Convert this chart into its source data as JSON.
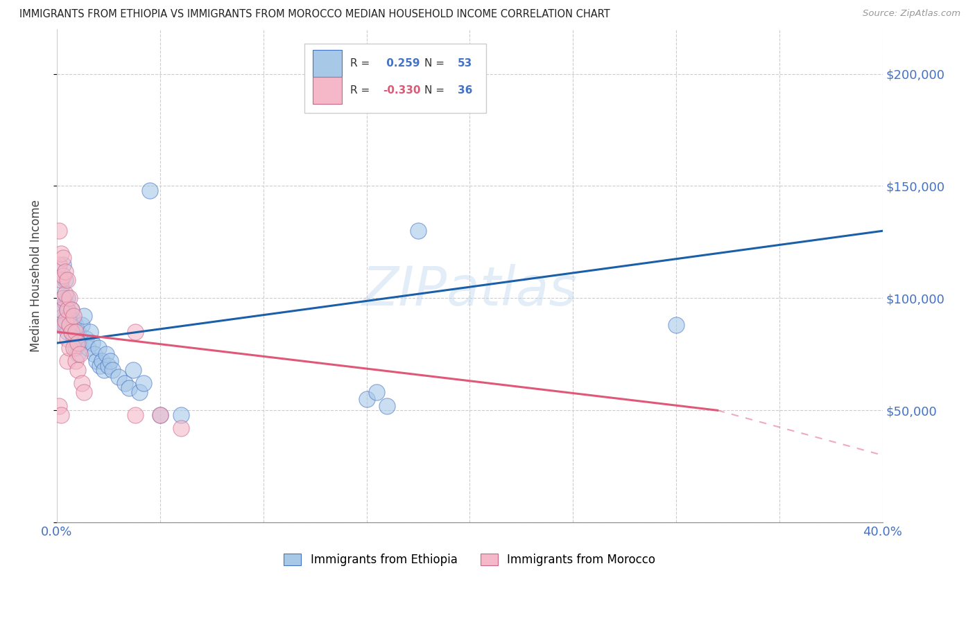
{
  "title": "IMMIGRANTS FROM ETHIOPIA VS IMMIGRANTS FROM MOROCCO MEDIAN HOUSEHOLD INCOME CORRELATION CHART",
  "source": "Source: ZipAtlas.com",
  "ylabel": "Median Household Income",
  "xlim": [
    0,
    0.4
  ],
  "ylim": [
    0,
    220000
  ],
  "yticks": [
    0,
    50000,
    100000,
    150000,
    200000
  ],
  "ytick_labels": [
    "",
    "$50,000",
    "$100,000",
    "$150,000",
    "$200,000"
  ],
  "xticks": [
    0.0,
    0.05,
    0.1,
    0.15,
    0.2,
    0.25,
    0.3,
    0.35,
    0.4
  ],
  "blue_color": "#a8c8e8",
  "blue_edge": "#4472C4",
  "pink_color": "#f4b8c8",
  "pink_edge": "#cc6688",
  "trend_blue": "#1a5fa8",
  "trend_pink": "#e05878",
  "axis_label_color": "#4472C4",
  "r_blue": 0.259,
  "n_blue": 53,
  "r_pink": -0.33,
  "n_pink": 36,
  "watermark": "ZIPatlas",
  "ethiopia_scatter": [
    [
      0.001,
      88000
    ],
    [
      0.002,
      95000
    ],
    [
      0.002,
      105000
    ],
    [
      0.003,
      100000
    ],
    [
      0.003,
      92000
    ],
    [
      0.003,
      115000
    ],
    [
      0.004,
      108000
    ],
    [
      0.004,
      98000
    ],
    [
      0.004,
      88000
    ],
    [
      0.005,
      95000
    ],
    [
      0.005,
      100000
    ],
    [
      0.005,
      85000
    ],
    [
      0.006,
      92000
    ],
    [
      0.006,
      88000
    ],
    [
      0.007,
      95000
    ],
    [
      0.007,
      85000
    ],
    [
      0.008,
      90000
    ],
    [
      0.008,
      82000
    ],
    [
      0.009,
      88000
    ],
    [
      0.009,
      78000
    ],
    [
      0.01,
      85000
    ],
    [
      0.01,
      75000
    ],
    [
      0.011,
      80000
    ],
    [
      0.012,
      88000
    ],
    [
      0.013,
      92000
    ],
    [
      0.014,
      82000
    ],
    [
      0.015,
      78000
    ],
    [
      0.016,
      85000
    ],
    [
      0.017,
      80000
    ],
    [
      0.018,
      75000
    ],
    [
      0.019,
      72000
    ],
    [
      0.02,
      78000
    ],
    [
      0.021,
      70000
    ],
    [
      0.022,
      72000
    ],
    [
      0.023,
      68000
    ],
    [
      0.024,
      75000
    ],
    [
      0.025,
      70000
    ],
    [
      0.026,
      72000
    ],
    [
      0.027,
      68000
    ],
    [
      0.03,
      65000
    ],
    [
      0.033,
      62000
    ],
    [
      0.035,
      60000
    ],
    [
      0.037,
      68000
    ],
    [
      0.04,
      58000
    ],
    [
      0.042,
      62000
    ],
    [
      0.045,
      148000
    ],
    [
      0.05,
      48000
    ],
    [
      0.06,
      48000
    ],
    [
      0.15,
      55000
    ],
    [
      0.155,
      58000
    ],
    [
      0.16,
      52000
    ],
    [
      0.175,
      130000
    ],
    [
      0.3,
      88000
    ]
  ],
  "morocco_scatter": [
    [
      0.001,
      130000
    ],
    [
      0.001,
      115000
    ],
    [
      0.002,
      120000
    ],
    [
      0.002,
      108000
    ],
    [
      0.002,
      95000
    ],
    [
      0.003,
      118000
    ],
    [
      0.003,
      110000
    ],
    [
      0.003,
      100000
    ],
    [
      0.003,
      88000
    ],
    [
      0.004,
      112000
    ],
    [
      0.004,
      102000
    ],
    [
      0.004,
      90000
    ],
    [
      0.005,
      108000
    ],
    [
      0.005,
      95000
    ],
    [
      0.005,
      82000
    ],
    [
      0.005,
      72000
    ],
    [
      0.006,
      100000
    ],
    [
      0.006,
      88000
    ],
    [
      0.006,
      78000
    ],
    [
      0.007,
      95000
    ],
    [
      0.007,
      85000
    ],
    [
      0.008,
      92000
    ],
    [
      0.008,
      78000
    ],
    [
      0.009,
      85000
    ],
    [
      0.009,
      72000
    ],
    [
      0.01,
      80000
    ],
    [
      0.01,
      68000
    ],
    [
      0.011,
      75000
    ],
    [
      0.012,
      62000
    ],
    [
      0.013,
      58000
    ],
    [
      0.001,
      52000
    ],
    [
      0.002,
      48000
    ],
    [
      0.038,
      85000
    ],
    [
      0.038,
      48000
    ],
    [
      0.05,
      48000
    ],
    [
      0.06,
      42000
    ]
  ]
}
